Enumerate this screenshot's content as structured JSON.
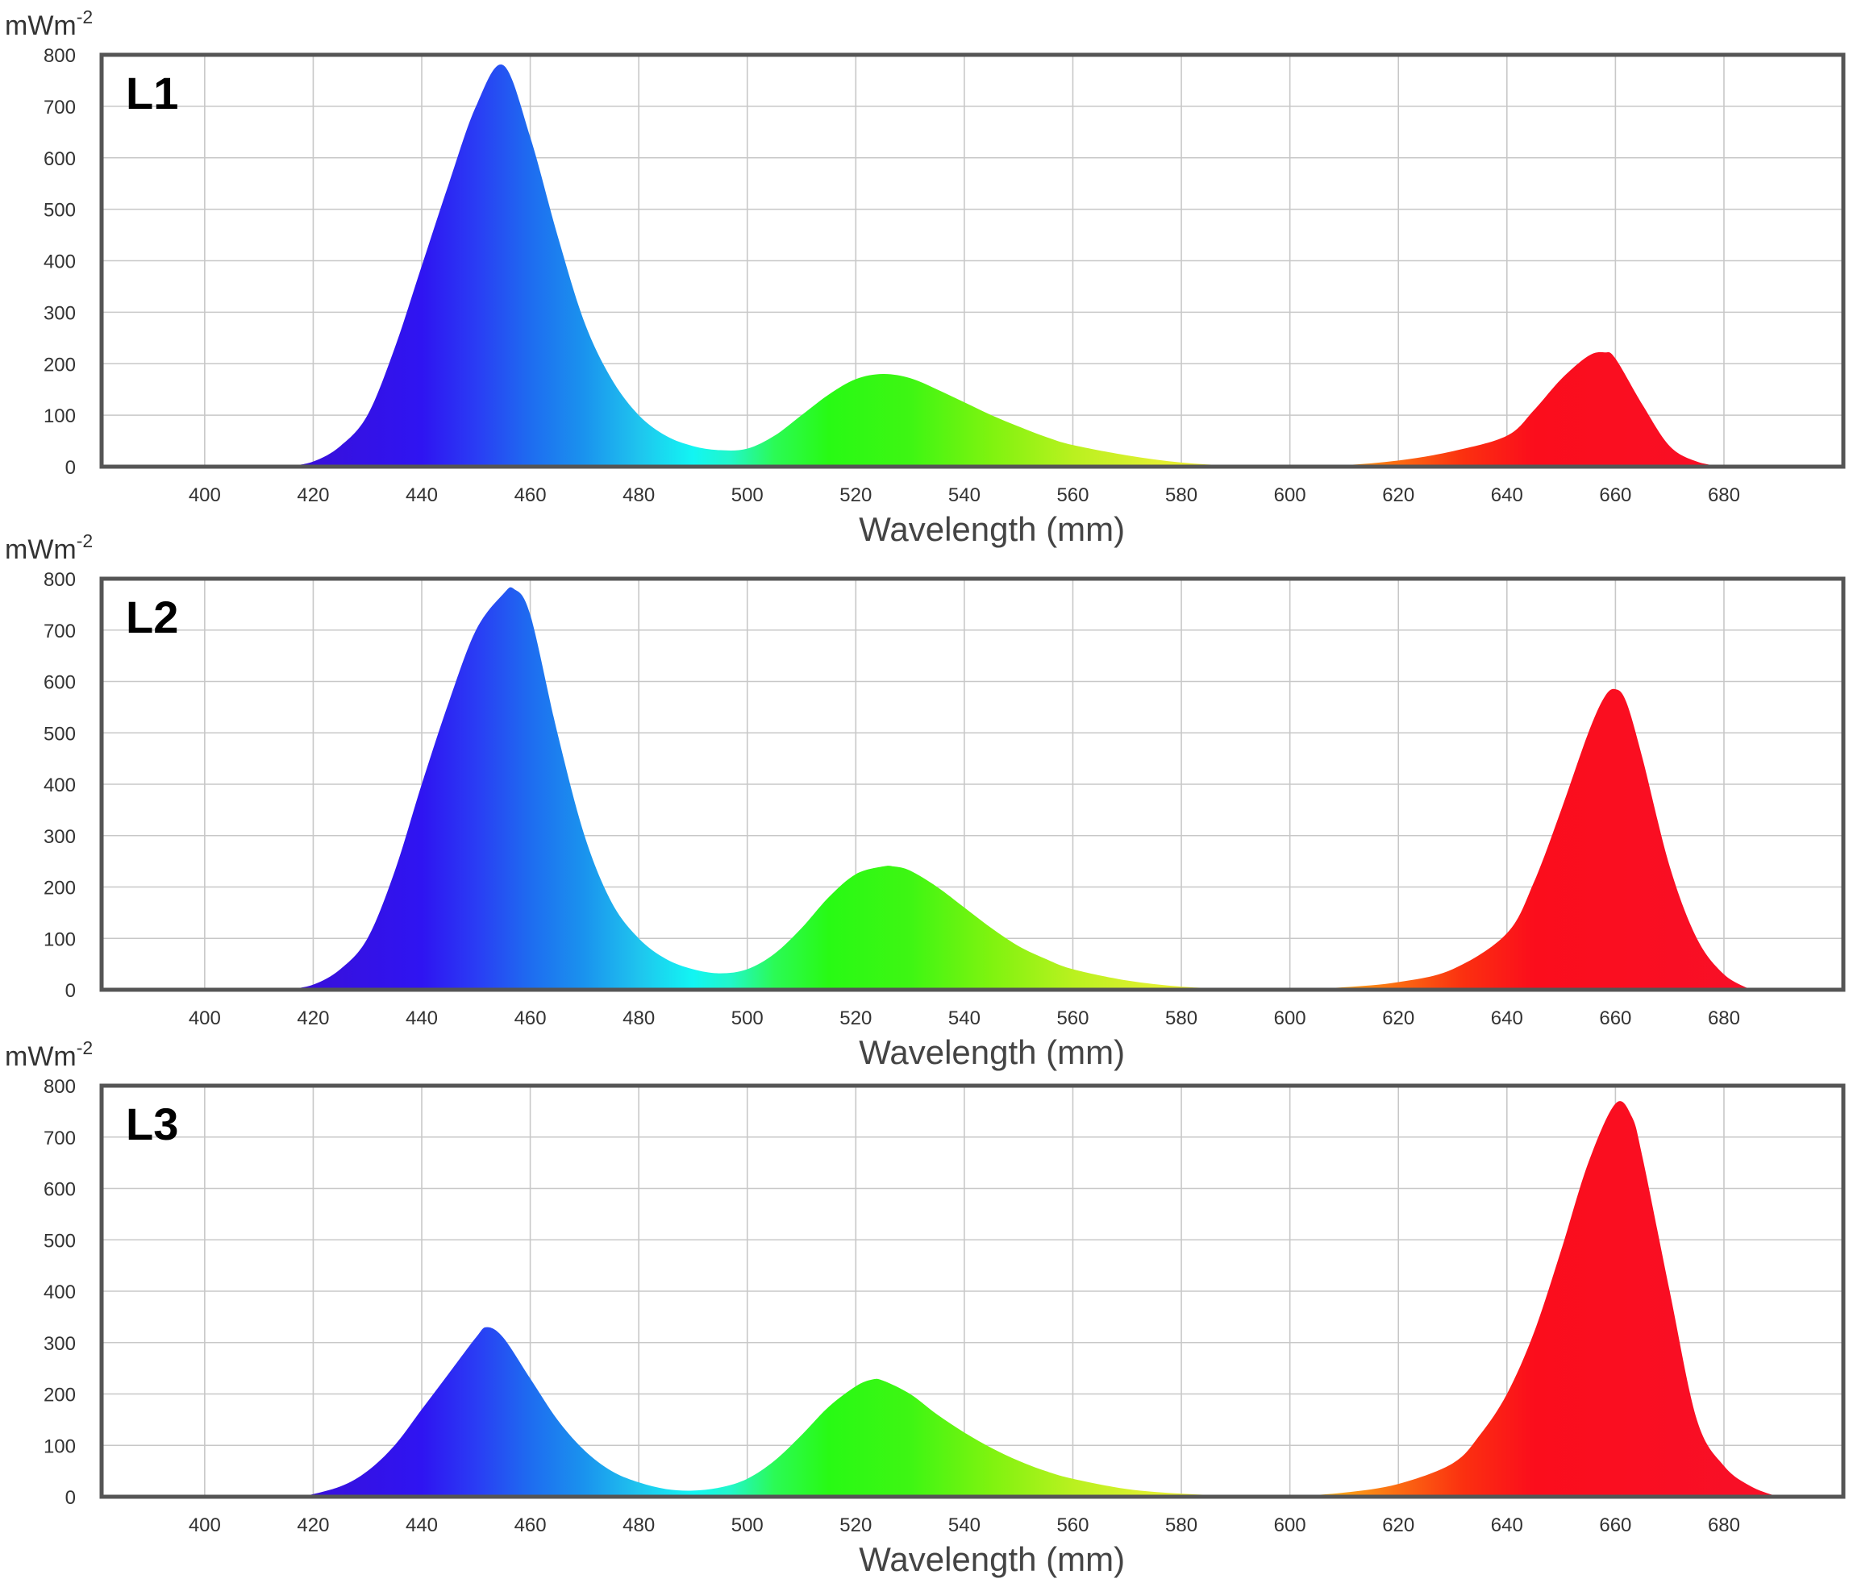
{
  "chart_data": [
    {
      "type": "area",
      "panel_label": "L1",
      "xlabel": "Wavelength (mm)",
      "ylabel": "mWm",
      "ylabel_superscript": "-2",
      "xlim": [
        381,
        702
      ],
      "ylim": [
        0,
        800
      ],
      "xticks": [
        400,
        420,
        440,
        460,
        480,
        500,
        520,
        540,
        560,
        580,
        600,
        620,
        640,
        660,
        680
      ],
      "yticks": [
        0,
        100,
        200,
        300,
        400,
        500,
        600,
        700,
        800
      ],
      "grid": true,
      "fill": "spectral gradient",
      "x": [
        415,
        420,
        425,
        430,
        435,
        440,
        445,
        450,
        455,
        460,
        465,
        470,
        475,
        480,
        485,
        490,
        495,
        500,
        505,
        510,
        515,
        520,
        525,
        530,
        535,
        540,
        545,
        550,
        555,
        560,
        570,
        580,
        590,
        600,
        610,
        620,
        630,
        640,
        645,
        650,
        655,
        658,
        660,
        665,
        670,
        675,
        680
      ],
      "values": [
        0,
        10,
        40,
        100,
        230,
        390,
        550,
        700,
        780,
        640,
        450,
        280,
        170,
        100,
        60,
        40,
        32,
        35,
        60,
        100,
        140,
        170,
        180,
        172,
        150,
        125,
        100,
        78,
        58,
        42,
        22,
        8,
        2,
        0,
        3,
        12,
        30,
        60,
        110,
        170,
        215,
        222,
        210,
        120,
        40,
        10,
        0
      ]
    },
    {
      "type": "area",
      "panel_label": "L2",
      "xlabel": "Wavelength (mm)",
      "ylabel": "mWm",
      "ylabel_superscript": "-2",
      "xlim": [
        381,
        702
      ],
      "ylim": [
        0,
        800
      ],
      "xticks": [
        400,
        420,
        440,
        460,
        480,
        500,
        520,
        540,
        560,
        580,
        600,
        620,
        640,
        660,
        680
      ],
      "yticks": [
        0,
        100,
        200,
        300,
        400,
        500,
        600,
        700,
        800
      ],
      "grid": true,
      "fill": "spectral gradient",
      "x": [
        415,
        420,
        425,
        430,
        435,
        440,
        445,
        450,
        455,
        457,
        460,
        465,
        470,
        475,
        480,
        485,
        490,
        495,
        500,
        505,
        510,
        515,
        520,
        525,
        527,
        530,
        535,
        540,
        545,
        550,
        555,
        560,
        570,
        580,
        590,
        600,
        610,
        620,
        630,
        640,
        645,
        650,
        655,
        658,
        660,
        662,
        665,
        670,
        675,
        680,
        685
      ],
      "values": [
        0,
        10,
        40,
        100,
        230,
        400,
        560,
        700,
        770,
        780,
        730,
        500,
        300,
        170,
        100,
        60,
        40,
        32,
        40,
        70,
        120,
        180,
        225,
        240,
        240,
        232,
        200,
        160,
        120,
        85,
        60,
        40,
        18,
        6,
        2,
        1,
        5,
        15,
        40,
        110,
        210,
        350,
        500,
        570,
        585,
        560,
        450,
        240,
        100,
        30,
        0
      ]
    },
    {
      "type": "area",
      "panel_label": "L3",
      "xlabel": "Wavelength (mm)",
      "ylabel": "mWm",
      "ylabel_superscript": "-2",
      "xlim": [
        381,
        702
      ],
      "ylim": [
        0,
        800
      ],
      "xticks": [
        400,
        420,
        440,
        460,
        480,
        500,
        520,
        540,
        560,
        580,
        600,
        620,
        640,
        660,
        680
      ],
      "yticks": [
        0,
        100,
        200,
        300,
        400,
        500,
        600,
        700,
        800
      ],
      "grid": true,
      "fill": "spectral gradient",
      "x": [
        418,
        425,
        430,
        435,
        440,
        445,
        450,
        452,
        455,
        460,
        465,
        470,
        475,
        480,
        485,
        490,
        495,
        500,
        505,
        510,
        515,
        520,
        523,
        525,
        530,
        535,
        540,
        545,
        550,
        555,
        560,
        570,
        580,
        590,
        600,
        610,
        620,
        630,
        635,
        640,
        645,
        650,
        655,
        660,
        663,
        665,
        670,
        675,
        680,
        685,
        690
      ],
      "values": [
        0,
        20,
        50,
        100,
        170,
        240,
        310,
        330,
        310,
        230,
        150,
        90,
        50,
        28,
        15,
        12,
        18,
        35,
        70,
        120,
        175,
        215,
        228,
        226,
        200,
        160,
        125,
        95,
        70,
        50,
        35,
        15,
        6,
        2,
        1,
        8,
        25,
        65,
        120,
        200,
        320,
        480,
        650,
        765,
        740,
        660,
        400,
        150,
        60,
        20,
        0
      ]
    }
  ]
}
